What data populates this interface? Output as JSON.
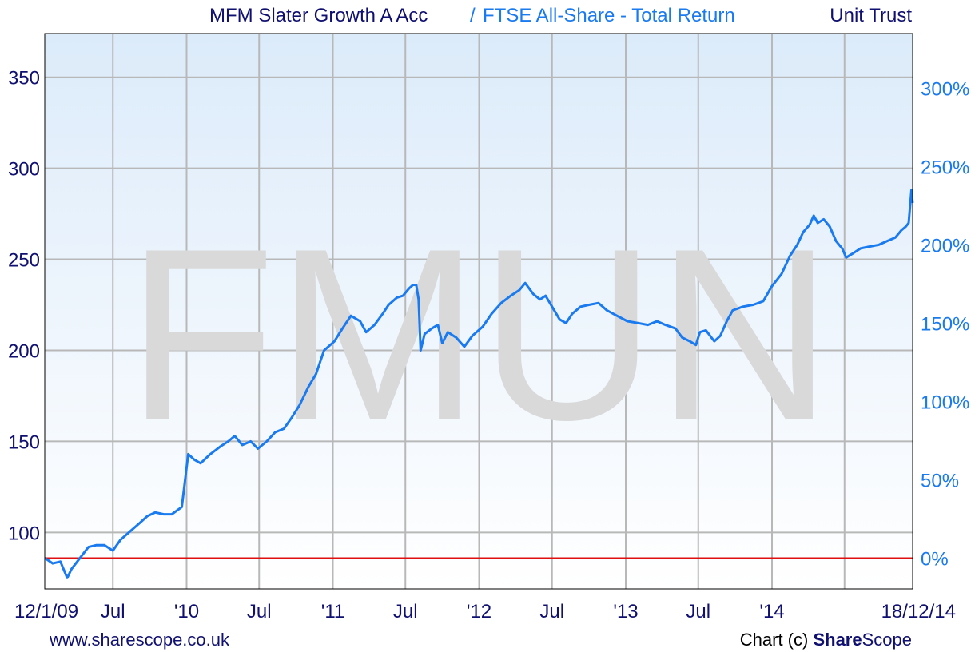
{
  "header": {
    "fund_name": "MFM Slater Growth A Acc",
    "separator": "/",
    "benchmark_name": "FTSE All-Share - Total Return",
    "fund_type": "Unit Trust"
  },
  "footer": {
    "website": "www.sharescope.co.uk",
    "credit_prefix": "Chart (c) ",
    "brand_bold": "Share",
    "brand_rest": "Scope"
  },
  "colors": {
    "fund_line": "#1a7af0",
    "baseline": "#e01010",
    "left_axis_text": "#101070",
    "right_axis_text": "#1a7af0",
    "grid": "#b8b8b8",
    "watermark": "#d9d9d9",
    "plot_top": "#dcebfa",
    "plot_bottom": "#ffffff"
  },
  "chart_data": {
    "type": "line",
    "watermark": "FMUN",
    "x_ticks": [
      "12/1/09",
      "Jul",
      "'10",
      "Jul",
      "'11",
      "Jul",
      "'12",
      "Jul",
      "'13",
      "Jul",
      "'14",
      "18/12/14"
    ],
    "x_tick_dates": [
      "2009-01-12",
      "2009-07-01",
      "2010-01-01",
      "2010-07-01",
      "2011-01-01",
      "2011-07-01",
      "2012-01-01",
      "2012-07-01",
      "2013-01-01",
      "2013-07-01",
      "2014-01-01",
      "2014-12-18"
    ],
    "x_grid_dates": [
      "2009-07-01",
      "2010-01-01",
      "2010-07-01",
      "2011-01-01",
      "2011-07-01",
      "2012-01-01",
      "2012-07-01",
      "2013-01-01",
      "2013-07-01",
      "2014-01-01",
      "2014-07-01"
    ],
    "xlim": [
      "2009-01-12",
      "2014-12-18"
    ],
    "y_left": {
      "ticks": [
        100,
        150,
        200,
        250,
        300,
        350
      ],
      "tick_labels": [
        "100",
        "150",
        "200",
        "250",
        "300",
        "350"
      ],
      "ylim": [
        69,
        374
      ]
    },
    "y_right": {
      "base_value": 86,
      "ticks": [
        0,
        50,
        100,
        150,
        200,
        250,
        300
      ],
      "tick_labels": [
        "0%",
        "50%",
        "100%",
        "150%",
        "200%",
        "250%",
        "300%"
      ]
    },
    "baseline_value": 86,
    "series": [
      {
        "values": [
          [
            "2009-01-12",
            86
          ],
          [
            "2009-02-01",
            83
          ],
          [
            "2009-02-20",
            84
          ],
          [
            "2009-03-09",
            75
          ],
          [
            "2009-03-20",
            80
          ],
          [
            "2009-04-10",
            86
          ],
          [
            "2009-05-01",
            92
          ],
          [
            "2009-05-20",
            93
          ],
          [
            "2009-06-10",
            93
          ],
          [
            "2009-07-01",
            90
          ],
          [
            "2009-07-20",
            96
          ],
          [
            "2009-08-15",
            101
          ],
          [
            "2009-09-05",
            105
          ],
          [
            "2009-09-25",
            109
          ],
          [
            "2009-10-15",
            111
          ],
          [
            "2009-11-05",
            110
          ],
          [
            "2009-11-25",
            110
          ],
          [
            "2009-12-20",
            114
          ],
          [
            "2010-01-05",
            143
          ],
          [
            "2010-01-20",
            140
          ],
          [
            "2010-02-05",
            138
          ],
          [
            "2010-03-01",
            143
          ],
          [
            "2010-03-25",
            147
          ],
          [
            "2010-04-15",
            150
          ],
          [
            "2010-05-01",
            153
          ],
          [
            "2010-05-20",
            148
          ],
          [
            "2010-06-10",
            150
          ],
          [
            "2010-06-28",
            146
          ],
          [
            "2010-07-20",
            150
          ],
          [
            "2010-08-10",
            155
          ],
          [
            "2010-09-01",
            157
          ],
          [
            "2010-09-20",
            163
          ],
          [
            "2010-10-10",
            170
          ],
          [
            "2010-11-01",
            180
          ],
          [
            "2010-11-20",
            187
          ],
          [
            "2010-12-10",
            200
          ],
          [
            "2011-01-05",
            205
          ],
          [
            "2011-01-25",
            212
          ],
          [
            "2011-02-15",
            219
          ],
          [
            "2011-03-10",
            216
          ],
          [
            "2011-03-25",
            210
          ],
          [
            "2011-04-15",
            214
          ],
          [
            "2011-05-05",
            220
          ],
          [
            "2011-05-20",
            225
          ],
          [
            "2011-06-10",
            229
          ],
          [
            "2011-06-25",
            230
          ],
          [
            "2011-07-10",
            234
          ],
          [
            "2011-07-20",
            236
          ],
          [
            "2011-07-28",
            236
          ],
          [
            "2011-08-03",
            228
          ],
          [
            "2011-08-08",
            200
          ],
          [
            "2011-08-18",
            209
          ],
          [
            "2011-09-05",
            212
          ],
          [
            "2011-09-20",
            214
          ],
          [
            "2011-10-01",
            204
          ],
          [
            "2011-10-15",
            210
          ],
          [
            "2011-11-05",
            207
          ],
          [
            "2011-11-25",
            202
          ],
          [
            "2011-12-15",
            208
          ],
          [
            "2012-01-10",
            213
          ],
          [
            "2012-02-01",
            220
          ],
          [
            "2012-02-25",
            226
          ],
          [
            "2012-03-20",
            230
          ],
          [
            "2012-04-10",
            233
          ],
          [
            "2012-04-25",
            237
          ],
          [
            "2012-05-15",
            231
          ],
          [
            "2012-06-01",
            228
          ],
          [
            "2012-06-15",
            230
          ],
          [
            "2012-07-01",
            224
          ],
          [
            "2012-07-20",
            217
          ],
          [
            "2012-08-05",
            215
          ],
          [
            "2012-08-20",
            220
          ],
          [
            "2012-09-10",
            224
          ],
          [
            "2012-10-01",
            225
          ],
          [
            "2012-10-25",
            226
          ],
          [
            "2012-11-15",
            222
          ],
          [
            "2012-12-10",
            219
          ],
          [
            "2013-01-05",
            216
          ],
          [
            "2013-02-01",
            215
          ],
          [
            "2013-02-25",
            214
          ],
          [
            "2013-03-20",
            216
          ],
          [
            "2013-04-10",
            214
          ],
          [
            "2013-05-05",
            212
          ],
          [
            "2013-05-22",
            207
          ],
          [
            "2013-06-10",
            205
          ],
          [
            "2013-06-25",
            203
          ],
          [
            "2013-07-05",
            210
          ],
          [
            "2013-07-20",
            211
          ],
          [
            "2013-08-10",
            205
          ],
          [
            "2013-08-25",
            208
          ],
          [
            "2013-09-10",
            216
          ],
          [
            "2013-09-25",
            222
          ],
          [
            "2013-10-20",
            224
          ],
          [
            "2013-11-15",
            225
          ],
          [
            "2013-12-10",
            227
          ],
          [
            "2013-12-31",
            235
          ],
          [
            "2014-01-25",
            242
          ],
          [
            "2014-02-15",
            252
          ],
          [
            "2014-03-05",
            258
          ],
          [
            "2014-03-20",
            265
          ],
          [
            "2014-04-05",
            269
          ],
          [
            "2014-04-15",
            274
          ],
          [
            "2014-04-25",
            270
          ],
          [
            "2014-05-10",
            272
          ],
          [
            "2014-05-25",
            268
          ],
          [
            "2014-06-10",
            260
          ],
          [
            "2014-06-25",
            256
          ],
          [
            "2014-07-05",
            251
          ],
          [
            "2014-07-20",
            253
          ],
          [
            "2014-08-10",
            256
          ],
          [
            "2014-09-01",
            257
          ],
          [
            "2014-09-25",
            258
          ],
          [
            "2014-10-15",
            260
          ],
          [
            "2014-11-05",
            262
          ],
          [
            "2014-11-20",
            266
          ],
          [
            "2014-12-01",
            268
          ],
          [
            "2014-12-08",
            270
          ],
          [
            "2014-12-15",
            288
          ],
          [
            "2014-12-18",
            281
          ]
        ]
      }
    ]
  }
}
